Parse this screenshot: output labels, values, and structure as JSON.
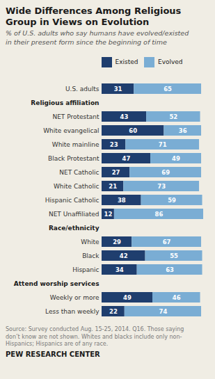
{
  "chart_data": {
    "type": "bar",
    "orientation": "horizontal",
    "stacked": true,
    "title": "Wide Differences Among Religious\nGroup in Views on Evolution",
    "subtitle": "% of U.S. adults who say humans have evolved/existed\nin their present form since the beginning of time",
    "source": "Source: Survey conducted Aug. 15-25, 2014. Q16. Those saying\ndon’t know are not shown. Whites and blacks include only non-\nHispanics; Hispanics are of any race.",
    "footer": "PEW RESEARCH CENTER",
    "categories": [
      "U.S. adults",
      "NET Protestant",
      "White evangelical",
      "White mainline",
      "Black Protestant",
      "NET Catholic",
      "White Catholic",
      "Hispanic Catholic",
      "NET Unaffiliated",
      "White",
      "Black",
      "Hispanic",
      "Weekly or more",
      "Less than weekly"
    ],
    "series": [
      {
        "name": "Existed",
        "color": "#1f3e6e",
        "values": [
          31,
          43,
          60,
          23,
          47,
          27,
          21,
          38,
          12,
          29,
          42,
          34,
          49,
          22
        ]
      },
      {
        "name": "Evolved",
        "color": "#7aadd4",
        "values": [
          65,
          52,
          36,
          71,
          49,
          69,
          73,
          59,
          86,
          67,
          55,
          63,
          46,
          74
        ]
      }
    ],
    "annotations": [
      {
        "text": "Religious affiliation",
        "category": "NET Protestant"
      },
      {
        "text": "Race/ethnicity",
        "category": "White"
      },
      {
        "text": "Attend worship services",
        "category": "Weekly or more"
      }
    ],
    "xlim": [
      0,
      100
    ],
    "tick_labels": "y",
    "grid": false,
    "legend": "top",
    "data_labels": true
  }
}
